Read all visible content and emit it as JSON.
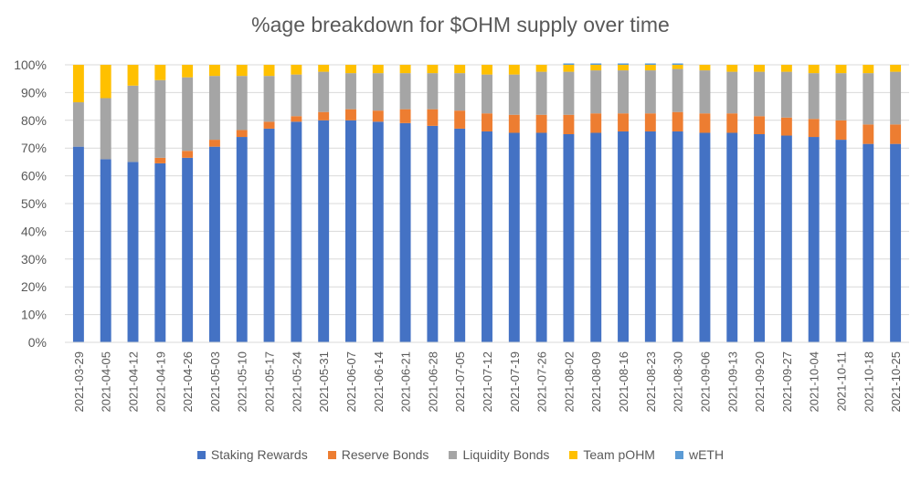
{
  "chart_data": {
    "type": "bar",
    "stacked": true,
    "title": "%age breakdown for $OHM supply over time",
    "xlabel": "",
    "ylabel": "",
    "ylim": [
      0,
      100
    ],
    "yticks": [
      "0%",
      "10%",
      "20%",
      "30%",
      "40%",
      "50%",
      "60%",
      "70%",
      "80%",
      "90%",
      "100%"
    ],
    "grid": true,
    "legend": "bottom",
    "categories": [
      "2021-03-29",
      "2021-04-05",
      "2021-04-12",
      "2021-04-19",
      "2021-04-26",
      "2021-05-03",
      "2021-05-10",
      "2021-05-17",
      "2021-05-24",
      "2021-05-31",
      "2021-06-07",
      "2021-06-14",
      "2021-06-21",
      "2021-06-28",
      "2021-07-05",
      "2021-07-12",
      "2021-07-19",
      "2021-07-26",
      "2021-08-02",
      "2021-08-09",
      "2021-08-16",
      "2021-08-23",
      "2021-08-30",
      "2021-09-06",
      "2021-09-13",
      "2021-09-20",
      "2021-09-27",
      "2021-10-04",
      "2021-10-11",
      "2021-10-18",
      "2021-10-25"
    ],
    "series": [
      {
        "name": "Staking Rewards",
        "color": "#4472C4",
        "values": [
          70.5,
          66,
          65,
          64.5,
          66.5,
          70.5,
          74,
          77,
          79.5,
          80,
          80,
          79.5,
          79,
          78,
          77,
          76,
          75.5,
          75.5,
          75,
          75.5,
          76,
          76,
          76,
          75.5,
          75.5,
          75,
          74.5,
          74,
          73,
          71.5,
          71.5
        ]
      },
      {
        "name": "Reserve Bonds",
        "color": "#ED7D31",
        "values": [
          0,
          0,
          0,
          2,
          2.5,
          2.5,
          2.5,
          2.5,
          2,
          3,
          4,
          4,
          5,
          6,
          6.5,
          6.5,
          6.5,
          6.5,
          7,
          7,
          6.5,
          6.5,
          7,
          7,
          7,
          6.5,
          6.5,
          6.5,
          7,
          7,
          7
        ]
      },
      {
        "name": "Liquidity Bonds",
        "color": "#A5A5A5",
        "values": [
          16,
          22,
          27.5,
          28,
          26.5,
          23,
          19.5,
          16.5,
          15,
          14.5,
          13,
          13.5,
          13,
          13,
          13.5,
          14,
          14.5,
          15.5,
          15.5,
          15.5,
          15.5,
          15.5,
          15.5,
          15.5,
          15,
          16,
          16.5,
          16.5,
          17,
          18.5,
          19
        ]
      },
      {
        "name": "Team pOHM",
        "color": "#FFC000",
        "values": [
          13.5,
          12,
          7.5,
          5.5,
          4.5,
          4,
          4,
          4,
          3.5,
          2.5,
          3,
          3,
          3,
          3,
          3,
          3.5,
          3.5,
          2.5,
          2.5,
          2,
          2,
          2,
          1.5,
          2,
          2.5,
          2.5,
          2.5,
          3,
          3,
          3,
          2.5
        ]
      },
      {
        "name": "wETH",
        "color": "#5B9BD5",
        "values": [
          0,
          0,
          0,
          0,
          0,
          0,
          0,
          0,
          0,
          0,
          0,
          0,
          0,
          0,
          0,
          0,
          0,
          0,
          0.5,
          0.5,
          0.5,
          0.5,
          0.5,
          0,
          0,
          0,
          0,
          0,
          0,
          0,
          0
        ]
      }
    ]
  }
}
